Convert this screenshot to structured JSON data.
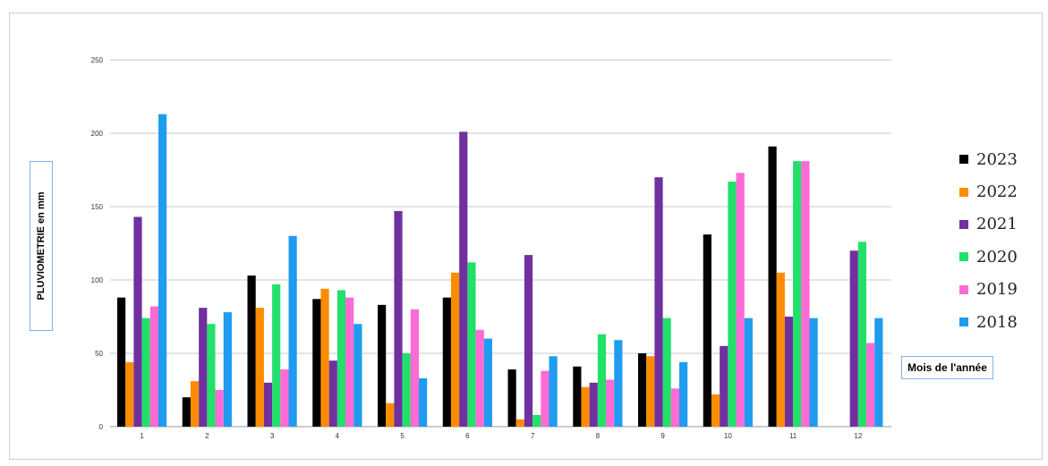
{
  "chart_data": {
    "type": "bar",
    "title": "",
    "xlabel": "Mois de l'année",
    "ylabel": "PLUVIOMETRIE en mm",
    "ylim": [
      0,
      250
    ],
    "yticks": [
      0,
      50,
      100,
      150,
      200,
      250
    ],
    "grid": true,
    "legend_position": "right",
    "categories": [
      "1",
      "2",
      "3",
      "4",
      "5",
      "6",
      "7",
      "8",
      "9",
      "10",
      "11",
      "12"
    ],
    "series": [
      {
        "name": "2023",
        "color": "#000000",
        "values": [
          88,
          20,
          103,
          87,
          83,
          88,
          39,
          41,
          50,
          131,
          191,
          0
        ]
      },
      {
        "name": "2022",
        "color": "#ff8c00",
        "values": [
          44,
          31,
          81,
          94,
          16,
          105,
          5,
          27,
          48,
          22,
          105,
          0
        ]
      },
      {
        "name": "2021",
        "color": "#7030a0",
        "values": [
          143,
          81,
          30,
          45,
          147,
          201,
          117,
          30,
          170,
          55,
          75,
          120
        ]
      },
      {
        "name": "2020",
        "color": "#22e06a",
        "values": [
          74,
          70,
          97,
          93,
          50,
          112,
          8,
          63,
          74,
          167,
          181,
          126
        ]
      },
      {
        "name": "2019",
        "color": "#ff6ad5",
        "values": [
          82,
          25,
          39,
          88,
          80,
          66,
          38,
          32,
          26,
          173,
          181,
          57
        ]
      },
      {
        "name": "2018",
        "color": "#1f9bf0",
        "values": [
          213,
          78,
          130,
          70,
          33,
          60,
          48,
          59,
          44,
          74,
          74,
          74
        ]
      }
    ]
  }
}
